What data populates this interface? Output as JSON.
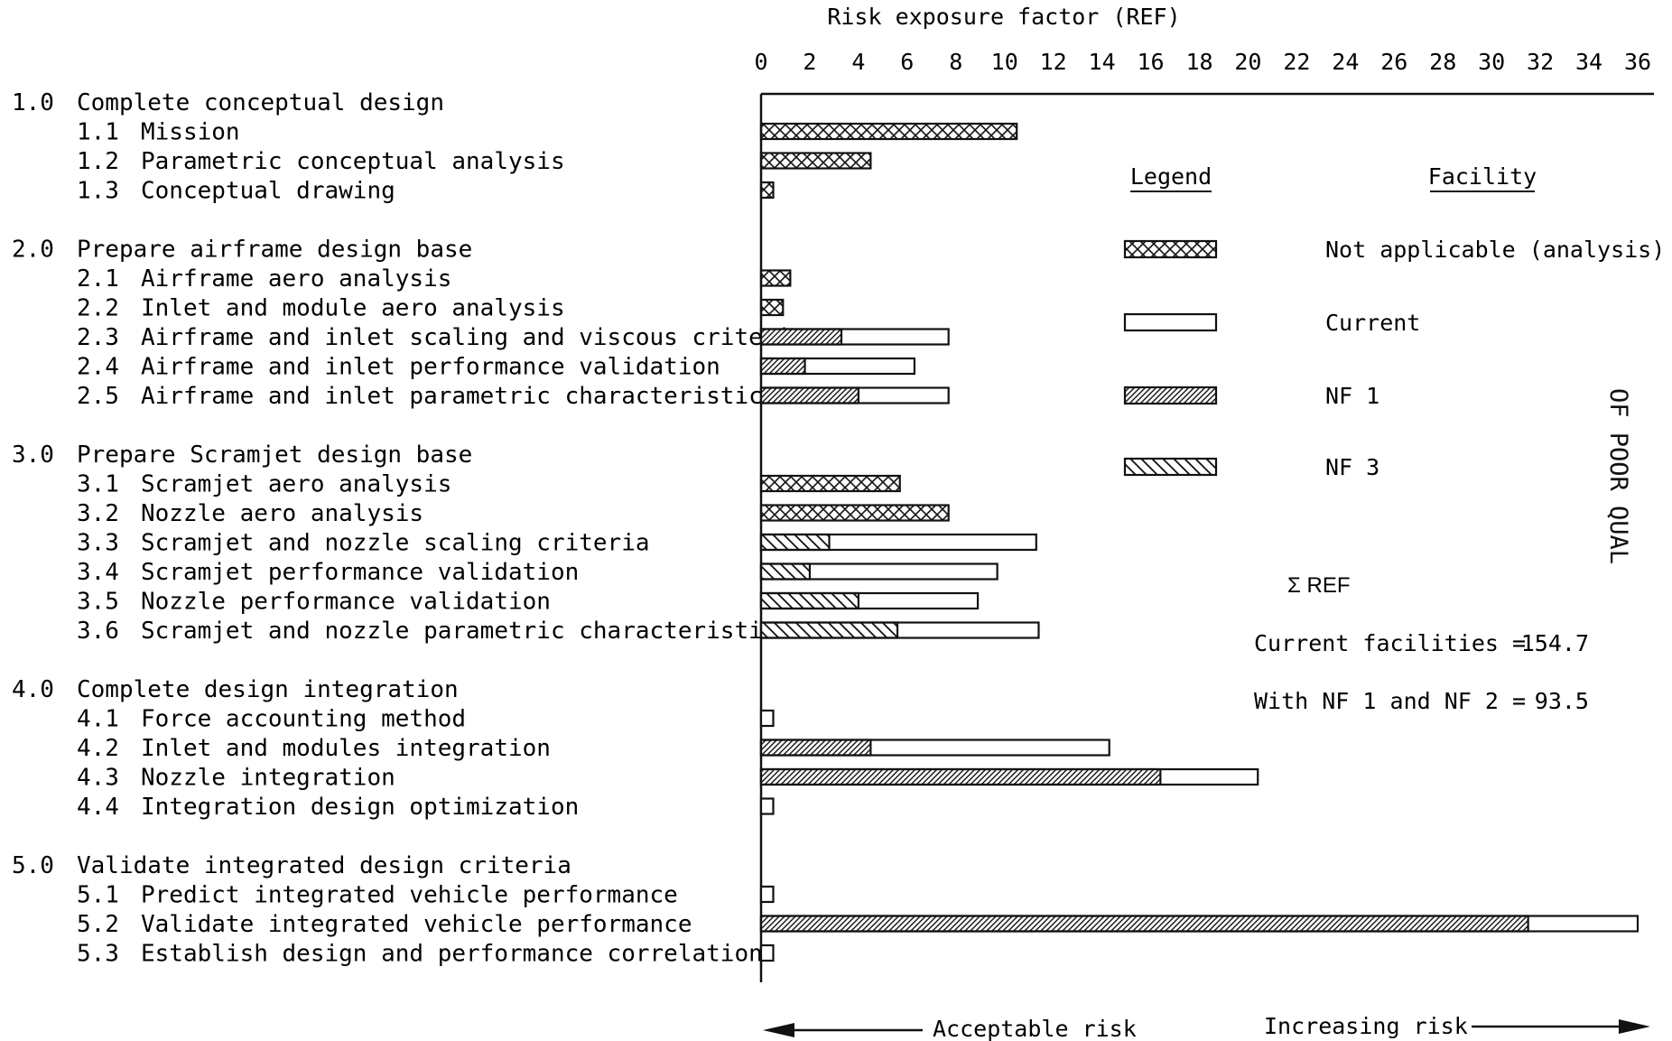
{
  "chart_data": {
    "type": "bar",
    "orientation": "horizontal",
    "title": "Risk exposure factor (REF)",
    "x_ticks": [
      "0",
      "2",
      "4",
      "6",
      "8",
      "10",
      "12",
      "14",
      "16",
      "18",
      "20",
      "22",
      "24",
      "26",
      "28",
      "30",
      "32",
      "34",
      "36"
    ],
    "xlim": [
      0,
      36
    ],
    "grid": false,
    "legend_placement": "right",
    "groups": [
      {
        "code": "1.0",
        "label": "Complete conceptual design",
        "items": [
          {
            "code": "1.1",
            "label": "Mission",
            "segments": [
              {
                "style": "crosshatch",
                "value": 10.5
              }
            ]
          },
          {
            "code": "1.2",
            "label": "Parametric conceptual analysis",
            "segments": [
              {
                "style": "crosshatch",
                "value": 4.5
              }
            ]
          },
          {
            "code": "1.3",
            "label": "Conceptual drawing",
            "segments": [
              {
                "style": "crosshatch",
                "value": 0.5
              }
            ]
          }
        ]
      },
      {
        "code": "2.0",
        "label": "Prepare airframe design base",
        "items": [
          {
            "code": "2.1",
            "label": "Airframe aero analysis",
            "segments": [
              {
                "style": "crosshatch",
                "value": 1.2
              }
            ]
          },
          {
            "code": "2.2",
            "label": "Inlet and module aero analysis",
            "segments": [
              {
                "style": "crosshatch",
                "value": 0.9
              }
            ]
          },
          {
            "code": "2.3",
            "label": "Airframe and inlet scaling and viscous criteria",
            "segments": [
              {
                "style": "nf1",
                "value": 3.3
              },
              {
                "style": "current",
                "value": 7.7
              }
            ]
          },
          {
            "code": "2.4",
            "label": "Airframe and inlet performance validation",
            "segments": [
              {
                "style": "nf1",
                "value": 1.8
              },
              {
                "style": "current",
                "value": 6.3
              }
            ]
          },
          {
            "code": "2.5",
            "label": "Airframe and inlet parametric characteristics",
            "segments": [
              {
                "style": "nf1",
                "value": 4.0
              },
              {
                "style": "current",
                "value": 7.7
              }
            ]
          }
        ]
      },
      {
        "code": "3.0",
        "label": "Prepare Scramjet design base",
        "items": [
          {
            "code": "3.1",
            "label": "Scramjet aero analysis",
            "segments": [
              {
                "style": "crosshatch",
                "value": 5.7
              }
            ]
          },
          {
            "code": "3.2",
            "label": "Nozzle aero analysis",
            "segments": [
              {
                "style": "crosshatch",
                "value": 7.7
              }
            ]
          },
          {
            "code": "3.3",
            "label": "Scramjet and nozzle scaling criteria",
            "segments": [
              {
                "style": "nf3",
                "value": 2.8
              },
              {
                "style": "current",
                "value": 11.3
              }
            ]
          },
          {
            "code": "3.4",
            "label": "Scramjet performance validation",
            "segments": [
              {
                "style": "nf3",
                "value": 2.0
              },
              {
                "style": "current",
                "value": 9.7
              }
            ]
          },
          {
            "code": "3.5",
            "label": "Nozzle performance validation",
            "segments": [
              {
                "style": "nf3",
                "value": 4.0
              },
              {
                "style": "current",
                "value": 8.9
              }
            ]
          },
          {
            "code": "3.6",
            "label": "Scramjet and nozzle parametric characteristics",
            "segments": [
              {
                "style": "nf3",
                "value": 5.6
              },
              {
                "style": "current",
                "value": 11.4
              }
            ]
          }
        ]
      },
      {
        "code": "4.0",
        "label": "Complete design integration",
        "items": [
          {
            "code": "4.1",
            "label": "Force accounting method",
            "segments": [
              {
                "style": "current",
                "value": 0.5
              }
            ]
          },
          {
            "code": "4.2",
            "label": "Inlet and modules integration",
            "segments": [
              {
                "style": "nf1",
                "value": 4.5
              },
              {
                "style": "current",
                "value": 14.3
              }
            ]
          },
          {
            "code": "4.3",
            "label": "Nozzle integration",
            "segments": [
              {
                "style": "nf1",
                "value": 16.4
              },
              {
                "style": "current",
                "value": 20.4
              }
            ]
          },
          {
            "code": "4.4",
            "label": "Integration design optimization",
            "segments": [
              {
                "style": "current",
                "value": 0.5
              }
            ]
          }
        ]
      },
      {
        "code": "5.0",
        "label": "Validate integrated design criteria",
        "items": [
          {
            "code": "5.1",
            "label": "Predict integrated vehicle performance",
            "segments": [
              {
                "style": "current",
                "value": 0.5
              }
            ]
          },
          {
            "code": "5.2",
            "label": "Validate integrated vehicle performance",
            "segments": [
              {
                "style": "nf1",
                "value": 31.5
              },
              {
                "style": "current",
                "value": 36.0
              }
            ]
          },
          {
            "code": "5.3",
            "label": "Establish design and performance correlation",
            "segments": [
              {
                "style": "current",
                "value": 0.5
              }
            ]
          }
        ]
      }
    ],
    "legend": {
      "header": "Legend",
      "facility_header": "Facility",
      "entries": [
        {
          "style": "crosshatch",
          "label": "Not applicable (analysis)"
        },
        {
          "style": "current",
          "label": "Current"
        },
        {
          "style": "nf1",
          "label": "NF 1"
        },
        {
          "style": "nf3",
          "label": "NF 3"
        }
      ]
    },
    "sum": {
      "title": "Σ REF",
      "current_label": "Current facilities =",
      "current_value": "154.7",
      "nf_label": "With NF 1 and NF 2 =",
      "nf_value": "93.5"
    },
    "bottom": {
      "left": "Acceptable risk",
      "right": "Increasing risk"
    },
    "side_text": "OF POOR QUAL"
  }
}
